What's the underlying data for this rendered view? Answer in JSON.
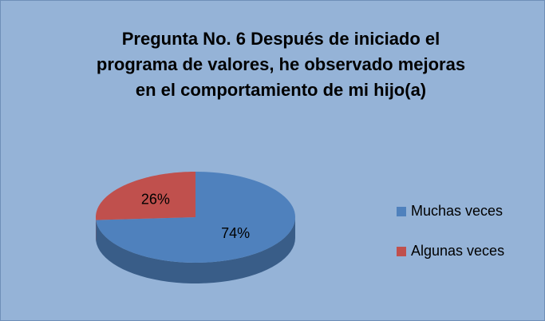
{
  "chart_data": {
    "type": "pie",
    "title": "Pregunta No. 6 Después de iniciado el programa de valores, he observado mejoras en el comportamiento de mi hijo(a)",
    "categories": [
      "Muchas veces",
      "Algunas veces"
    ],
    "values": [
      74,
      26
    ],
    "value_labels": [
      "74%",
      "26%"
    ],
    "colors": [
      "#4f81bd",
      "#c0504d"
    ],
    "legend": "right"
  }
}
